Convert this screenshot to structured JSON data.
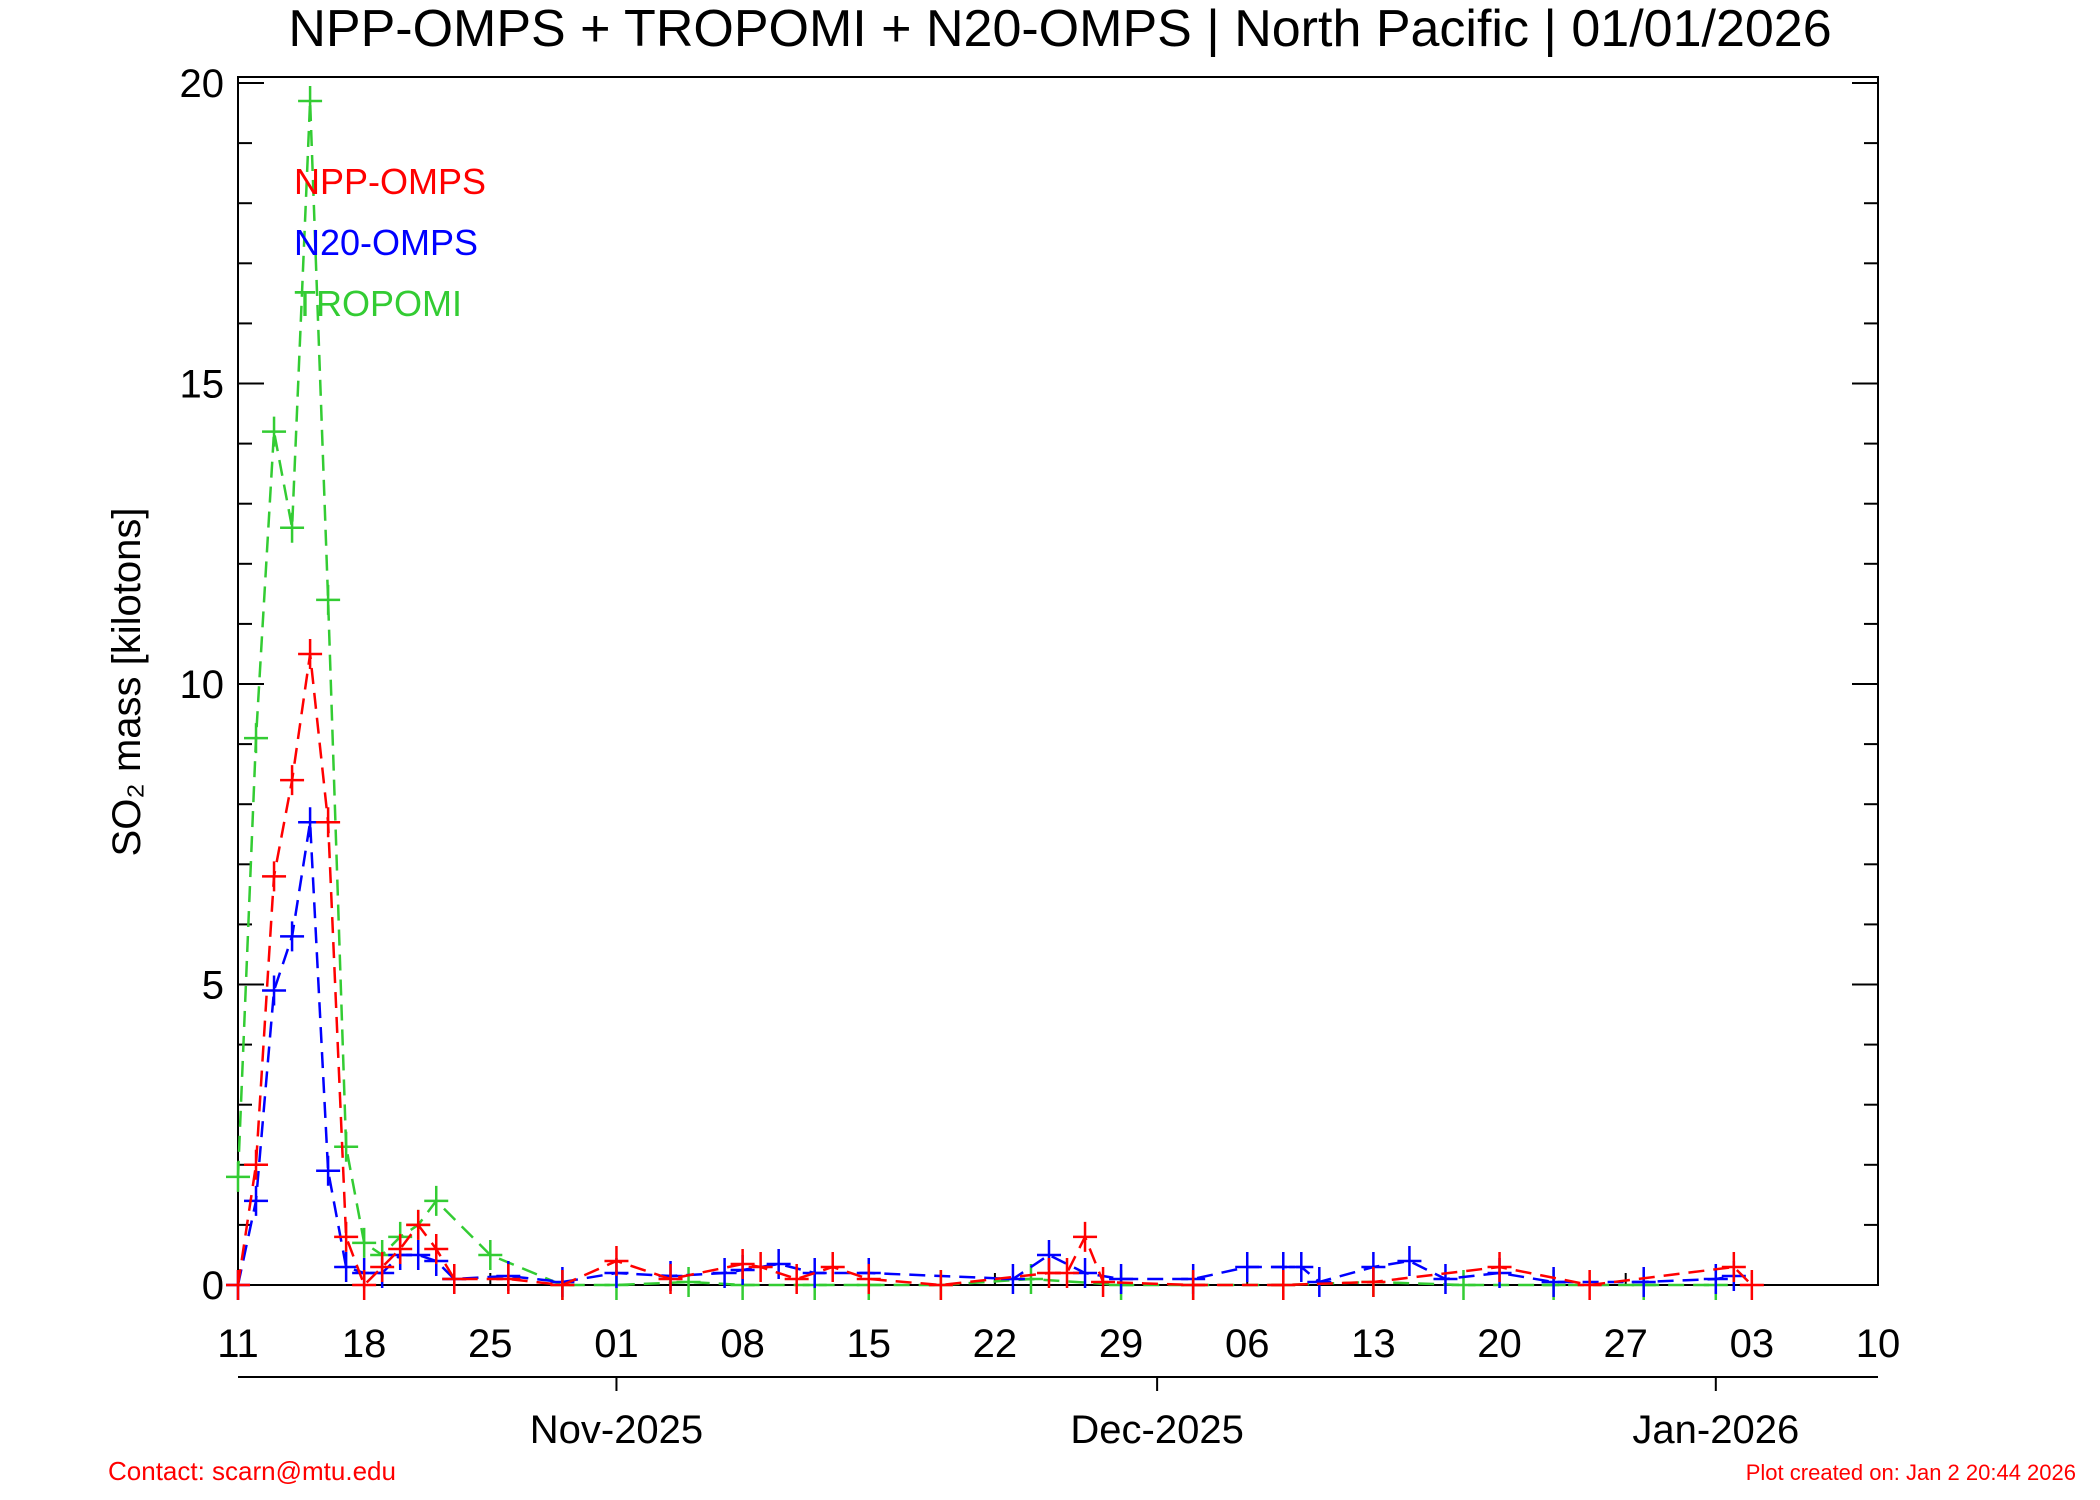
{
  "chart_data": {
    "type": "line",
    "title": "NPP-OMPS + TROPOMI + N20-OMPS | North Pacific | 01/01/2026",
    "y_label": "SO₂ mass [kilotons]",
    "contact": "Contact: scarn@mtu.edu",
    "created": "Plot created on: Jan  2 20:44 2026",
    "xlim": [
      "2025-10-11",
      "2026-01-10"
    ],
    "xticks": [
      {
        "value": "2025-10-11",
        "label": "11"
      },
      {
        "value": "2025-10-18",
        "label": "18"
      },
      {
        "value": "2025-10-25",
        "label": "25"
      },
      {
        "value": "2025-11-01",
        "label": "01"
      },
      {
        "value": "2025-11-08",
        "label": "08"
      },
      {
        "value": "2025-11-15",
        "label": "15"
      },
      {
        "value": "2025-11-22",
        "label": "22"
      },
      {
        "value": "2025-11-29",
        "label": "29"
      },
      {
        "value": "2025-12-06",
        "label": "06"
      },
      {
        "value": "2025-12-13",
        "label": "13"
      },
      {
        "value": "2025-12-20",
        "label": "20"
      },
      {
        "value": "2025-12-27",
        "label": "27"
      },
      {
        "value": "2026-01-03",
        "label": "03"
      },
      {
        "value": "2026-01-10",
        "label": "10"
      }
    ],
    "month_ticks": [
      {
        "value": "2025-11-01",
        "label": "Nov-2025"
      },
      {
        "value": "2025-12-01",
        "label": "Dec-2025"
      },
      {
        "value": "2026-01-01",
        "label": "Jan-2026"
      }
    ],
    "ylim": [
      0,
      20.1
    ],
    "yticks": [
      0,
      5,
      10,
      15,
      20
    ],
    "yminor": [
      1,
      2,
      3,
      4,
      6,
      7,
      8,
      9,
      11,
      12,
      13,
      14,
      16,
      17,
      18,
      19
    ],
    "series": [
      {
        "name": "NPP-OMPS",
        "color": "#ff0000",
        "x": [
          "2025-10-11",
          "2025-10-12",
          "2025-10-13",
          "2025-10-14",
          "2025-10-15",
          "2025-10-16",
          "2025-10-17",
          "2025-10-18",
          "2025-10-19",
          "2025-10-20",
          "2025-10-21",
          "2025-10-22",
          "2025-10-23",
          "2025-10-26",
          "2025-10-29",
          "2025-11-01",
          "2025-11-04",
          "2025-11-08",
          "2025-11-09",
          "2025-11-11",
          "2025-11-13",
          "2025-11-15",
          "2025-11-19",
          "2025-11-25",
          "2025-11-26",
          "2025-11-27",
          "2025-11-28",
          "2025-12-03",
          "2025-12-08",
          "2025-12-13",
          "2025-12-20",
          "2025-12-25",
          "2026-01-02",
          "2026-01-03"
        ],
        "values": [
          0,
          2.0,
          6.8,
          8.4,
          10.5,
          7.7,
          0.8,
          0.0,
          0.3,
          0.6,
          1.0,
          0.6,
          0.1,
          0.1,
          0.0,
          0.4,
          0.1,
          0.35,
          0.3,
          0.1,
          0.3,
          0.1,
          0.0,
          0.2,
          0.2,
          0.8,
          0.05,
          0.0,
          0.0,
          0.05,
          0.3,
          0.0,
          0.3,
          0.0
        ]
      },
      {
        "name": "N20-OMPS",
        "color": "#0000ff",
        "x": [
          "2025-10-11",
          "2025-10-12",
          "2025-10-13",
          "2025-10-14",
          "2025-10-15",
          "2025-10-16",
          "2025-10-17",
          "2025-10-18",
          "2025-10-19",
          "2025-10-20",
          "2025-10-21",
          "2025-10-22",
          "2025-10-23",
          "2025-10-26",
          "2025-10-29",
          "2025-11-01",
          "2025-11-04",
          "2025-11-07",
          "2025-11-08",
          "2025-11-10",
          "2025-11-12",
          "2025-11-15",
          "2025-11-23",
          "2025-11-25",
          "2025-11-27",
          "2025-11-29",
          "2025-12-03",
          "2025-12-06",
          "2025-12-08",
          "2025-12-09",
          "2025-12-10",
          "2025-12-13",
          "2025-12-15",
          "2025-12-17",
          "2025-12-20",
          "2025-12-23",
          "2025-12-28",
          "2026-01-01",
          "2026-01-02"
        ],
        "values": [
          0,
          1.4,
          4.9,
          5.8,
          7.7,
          1.9,
          0.3,
          0.2,
          0.2,
          0.5,
          0.5,
          0.4,
          0.1,
          0.15,
          0.05,
          0.2,
          0.15,
          0.2,
          0.25,
          0.35,
          0.2,
          0.2,
          0.1,
          0.5,
          0.2,
          0.1,
          0.1,
          0.3,
          0.3,
          0.3,
          0.05,
          0.3,
          0.4,
          0.1,
          0.2,
          0.05,
          0.05,
          0.1,
          0.15
        ]
      },
      {
        "name": "TROPOMI",
        "color": "#33cc33",
        "x": [
          "2025-10-11",
          "2025-10-12",
          "2025-10-13",
          "2025-10-14",
          "2025-10-15",
          "2025-10-16",
          "2025-10-17",
          "2025-10-18",
          "2025-10-19",
          "2025-10-20",
          "2025-10-21",
          "2025-10-22",
          "2025-10-25",
          "2025-10-29",
          "2025-11-01",
          "2025-11-05",
          "2025-11-08",
          "2025-11-12",
          "2025-11-15",
          "2025-11-19",
          "2025-11-24",
          "2025-11-29",
          "2025-12-03",
          "2025-12-08",
          "2025-12-13",
          "2025-12-18",
          "2025-12-23",
          "2025-12-28",
          "2026-01-01"
        ],
        "values": [
          1.8,
          9.1,
          14.2,
          12.6,
          19.7,
          11.4,
          2.3,
          0.7,
          0.5,
          0.8,
          1.0,
          1.4,
          0.5,
          0,
          0,
          0.05,
          0,
          0,
          0,
          0,
          0.1,
          0,
          0,
          0,
          0.05,
          0,
          0,
          0,
          0
        ]
      }
    ]
  }
}
